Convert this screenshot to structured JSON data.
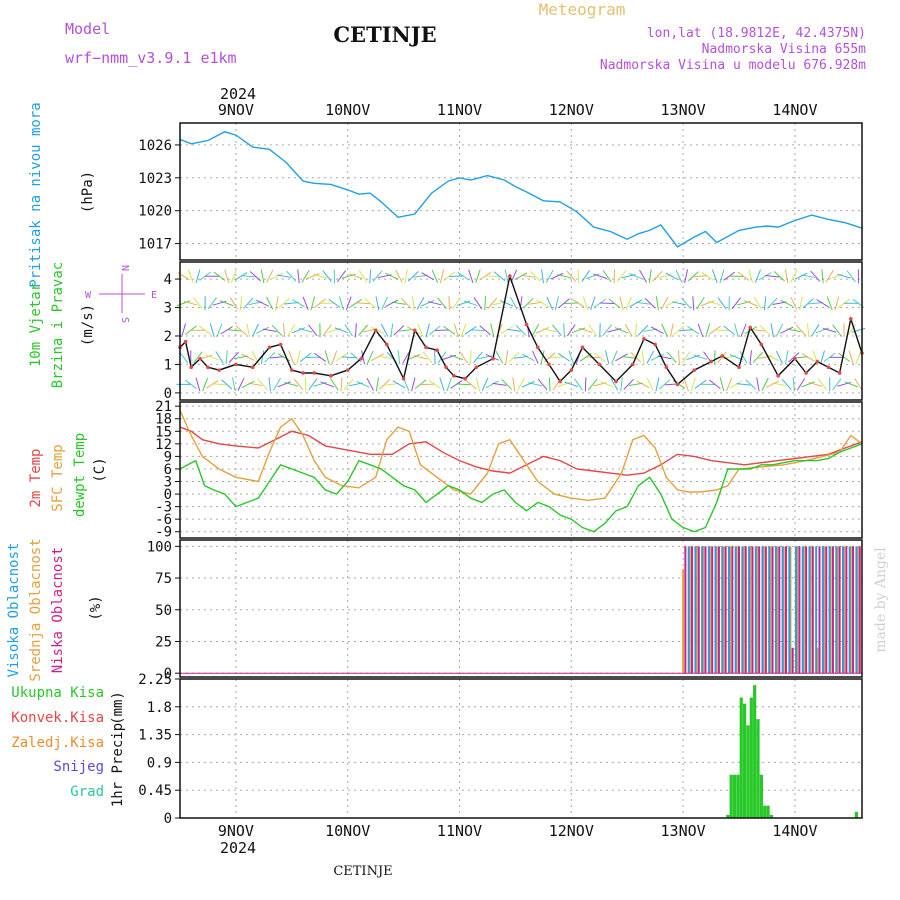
{
  "header": {
    "model_label": "Model",
    "model_name": "wrf−nmm_v3.9.1  e1km",
    "station": "CETINJE",
    "product": "Meteogram",
    "lonlat": "lon,lat (18.9812E, 42.4375N)",
    "elevation": "Nadmorska Visina 655m",
    "model_elevation": "Nadmorska Visina u modelu 676.928m",
    "footer_station": "CETINJE",
    "credit": "made by Angel",
    "year_top": "2024",
    "year_bottom": "2024"
  },
  "colors": {
    "pressure": "#1ea0e6",
    "temp2m": "#e64646",
    "sfctemp": "#e6a03c",
    "dewpt": "#28c828",
    "high_cloud": "#1ea0e6",
    "mid_cloud": "#e6a03c",
    "low_cloud": "#d21e8c",
    "precip_total": "#28c828",
    "purple": "#b450dc"
  },
  "chart_data": [
    {
      "type": "line",
      "panel": "pressure",
      "title": "",
      "ylabel": [
        "Pritisak na nivou mora",
        "(hPa)"
      ],
      "yticks": [
        1017,
        1020,
        1023,
        1026
      ],
      "ylim": [
        1015.5,
        1028
      ],
      "xlim": [
        0,
        6.1
      ],
      "xlabels": [
        "9NOV",
        "10NOV",
        "11NOV",
        "12NOV",
        "13NOV",
        "14NOV"
      ],
      "grid": true,
      "series": [
        {
          "key": "pressure",
          "x": [
            0,
            0.1,
            0.25,
            0.4,
            0.5,
            0.65,
            0.8,
            0.95,
            1.1,
            1.2,
            1.35,
            1.5,
            1.6,
            1.7,
            1.8,
            1.95,
            2.1,
            2.25,
            2.4,
            2.5,
            2.6,
            2.75,
            2.9,
            3.0,
            3.1,
            3.25,
            3.4,
            3.55,
            3.7,
            3.85,
            4.0,
            4.1,
            4.2,
            4.3,
            4.45,
            4.6,
            4.7,
            4.8,
            5.0,
            5.15,
            5.25,
            5.35,
            5.5,
            5.65,
            5.8,
            5.95,
            6.1
          ],
          "values": [
            1026.5,
            1026.1,
            1026.4,
            1027.2,
            1026.9,
            1025.8,
            1025.6,
            1024.4,
            1022.7,
            1022.5,
            1022.4,
            1021.9,
            1021.5,
            1021.6,
            1020.8,
            1019.4,
            1019.7,
            1021.6,
            1022.7,
            1023.0,
            1022.8,
            1023.2,
            1022.8,
            1022.2,
            1021.7,
            1020.9,
            1020.8,
            1019.9,
            1018.5,
            1018.1,
            1017.4,
            1017.9,
            1018.2,
            1018.7,
            1016.7,
            1017.6,
            1018.1,
            1017.1,
            1018.2,
            1018.5,
            1018.6,
            1018.5,
            1019.1,
            1019.6,
            1019.2,
            1018.9,
            1018.4
          ]
        }
      ]
    },
    {
      "type": "line",
      "panel": "wind",
      "title": "",
      "ylabel": [
        "10m Vjetar",
        "Brzina i Pravac",
        "(m/s)"
      ],
      "compass": {
        "n": "N",
        "s": "S",
        "w": "W",
        "e": "E"
      },
      "yticks": [
        0,
        1,
        2,
        3,
        4
      ],
      "ylim": [
        -0.25,
        4.6
      ],
      "xlim": [
        0,
        6.1
      ],
      "grid": true,
      "series": [
        {
          "key": "wind_speed",
          "x": [
            0,
            0.05,
            0.1,
            0.18,
            0.25,
            0.35,
            0.5,
            0.65,
            0.8,
            0.9,
            1.0,
            1.1,
            1.2,
            1.35,
            1.5,
            1.62,
            1.75,
            1.85,
            2.0,
            2.1,
            2.2,
            2.3,
            2.38,
            2.45,
            2.55,
            2.65,
            2.8,
            2.95,
            3.1,
            3.2,
            3.3,
            3.4,
            3.5,
            3.6,
            3.75,
            3.9,
            4.05,
            4.15,
            4.25,
            4.35,
            4.45,
            4.6,
            4.75,
            4.85,
            5.0,
            5.1,
            5.2,
            5.35,
            5.5,
            5.6,
            5.7,
            5.8,
            5.9,
            6.0,
            6.1
          ],
          "values": [
            1.6,
            1.8,
            0.9,
            1.2,
            0.9,
            0.8,
            1.0,
            0.9,
            1.6,
            1.7,
            0.8,
            0.7,
            0.7,
            0.6,
            0.8,
            1.2,
            2.2,
            1.7,
            0.5,
            2.2,
            1.6,
            1.5,
            0.9,
            0.6,
            0.5,
            0.9,
            1.2,
            4.1,
            2.4,
            1.6,
            1.0,
            0.4,
            0.8,
            1.6,
            1.0,
            0.4,
            1.0,
            1.9,
            1.7,
            0.9,
            0.3,
            0.8,
            1.1,
            1.3,
            0.9,
            2.3,
            1.7,
            0.6,
            1.2,
            0.7,
            1.1,
            0.9,
            0.7,
            2.6,
            1.4
          ]
        }
      ]
    },
    {
      "type": "line",
      "panel": "temperature",
      "title": "",
      "ylabel": [
        "2m Temp",
        "SFC Temp",
        "dewpt Temp",
        "(C)"
      ],
      "yticks": [
        -9,
        -6,
        -3,
        0,
        3,
        6,
        9,
        12,
        15,
        18,
        21
      ],
      "ylim": [
        -10.5,
        22
      ],
      "xlim": [
        0,
        6.1
      ],
      "grid": true,
      "series": [
        {
          "name": "2m Temp",
          "key": "temp2m",
          "x": [
            0,
            0.1,
            0.2,
            0.35,
            0.5,
            0.7,
            0.85,
            1.0,
            1.15,
            1.3,
            1.5,
            1.7,
            1.9,
            2.05,
            2.2,
            2.35,
            2.5,
            2.65,
            2.8,
            2.95,
            3.1,
            3.25,
            3.4,
            3.55,
            3.7,
            3.85,
            4.0,
            4.15,
            4.3,
            4.45,
            4.6,
            4.75,
            4.9,
            5.05,
            5.2,
            5.35,
            5.5,
            5.65,
            5.8,
            5.95,
            6.1
          ],
          "values": [
            16,
            15,
            13,
            12,
            11.5,
            11,
            13,
            15,
            14,
            11.5,
            10.5,
            9.5,
            9.5,
            12,
            12.5,
            10,
            8,
            6.5,
            5.5,
            5,
            7,
            9,
            8,
            6,
            5.5,
            5,
            4.5,
            5,
            7,
            9.5,
            9,
            8,
            7.5,
            7,
            7.5,
            8,
            8.5,
            9,
            9.5,
            11,
            12.5
          ]
        },
        {
          "name": "SFC Temp",
          "key": "sfctemp",
          "x": [
            0,
            0.1,
            0.2,
            0.35,
            0.5,
            0.7,
            0.8,
            0.9,
            1.0,
            1.1,
            1.2,
            1.3,
            1.45,
            1.6,
            1.75,
            1.85,
            1.95,
            2.05,
            2.15,
            2.3,
            2.45,
            2.6,
            2.75,
            2.85,
            2.95,
            3.05,
            3.2,
            3.35,
            3.5,
            3.65,
            3.8,
            3.95,
            4.05,
            4.15,
            4.25,
            4.35,
            4.45,
            4.55,
            4.65,
            4.8,
            4.9,
            5.0,
            5.2,
            5.4,
            5.6,
            5.75,
            5.9,
            6.0,
            6.1
          ],
          "values": [
            20,
            14,
            9,
            6,
            4,
            3,
            10,
            16,
            18,
            14,
            8,
            4,
            2,
            1.5,
            4,
            13,
            16,
            15,
            7,
            4,
            1,
            0,
            5,
            12,
            13,
            9,
            3,
            0,
            -1,
            -1.5,
            -1,
            5,
            13,
            14,
            11,
            4,
            1,
            0.5,
            0.5,
            1,
            2,
            6,
            6.5,
            7,
            8,
            9,
            10,
            14,
            12
          ]
        },
        {
          "name": "dewpt Temp",
          "key": "dewpt",
          "x": [
            0,
            0.07,
            0.14,
            0.22,
            0.3,
            0.4,
            0.5,
            0.6,
            0.7,
            0.8,
            0.9,
            1.0,
            1.1,
            1.2,
            1.3,
            1.4,
            1.5,
            1.6,
            1.7,
            1.8,
            1.9,
            2.0,
            2.1,
            2.2,
            2.3,
            2.4,
            2.5,
            2.6,
            2.7,
            2.8,
            2.9,
            3.0,
            3.1,
            3.2,
            3.3,
            3.4,
            3.5,
            3.6,
            3.7,
            3.8,
            3.9,
            4.0,
            4.1,
            4.2,
            4.3,
            4.4,
            4.5,
            4.6,
            4.7,
            4.8,
            4.9,
            5.0,
            5.1,
            5.2,
            5.3,
            5.4,
            5.5,
            5.6,
            5.7,
            5.8,
            5.9,
            6.0,
            6.1
          ],
          "values": [
            6,
            7,
            8,
            2,
            1,
            0,
            -3,
            -2,
            -1,
            3,
            7,
            6,
            5,
            4,
            1,
            0,
            3,
            8,
            7,
            6,
            4,
            2,
            1,
            -2,
            0,
            2,
            1,
            -1,
            -2,
            0,
            1,
            -2,
            -4,
            -2,
            -3,
            -5,
            -6,
            -8,
            -9,
            -7,
            -4,
            -3,
            2,
            4,
            0,
            -6,
            -8,
            -9,
            -8,
            -2,
            6,
            6,
            6,
            7,
            7,
            7.5,
            8,
            8,
            8,
            8.5,
            10,
            11,
            12
          ]
        }
      ]
    },
    {
      "type": "bar",
      "panel": "cloud",
      "title": "",
      "ylabel": [
        "Visoka Oblacnost",
        "Srednja Oblacnost",
        "Niska Oblacnost",
        "(%)"
      ],
      "yticks": [
        0,
        25,
        50,
        75,
        100
      ],
      "ylim": [
        -3,
        105
      ],
      "xlim": [
        0,
        6.1
      ],
      "grid": true,
      "note": "0% cloud until ~12-13 NOV; mostly 100% thereafter",
      "series": [
        {
          "name": "Niska Oblacnost",
          "key": "low_cloud",
          "x": [
            4.52,
            4.58,
            4.64,
            4.7,
            4.76,
            4.82,
            4.88,
            4.94,
            5.0,
            5.06,
            5.12,
            5.18,
            5.24,
            5.3,
            5.36,
            5.42,
            5.48,
            5.54,
            5.6,
            5.66,
            5.72,
            5.78,
            5.84,
            5.9,
            5.96,
            6.02,
            6.08
          ],
          "values": [
            100,
            100,
            100,
            100,
            100,
            100,
            100,
            100,
            100,
            100,
            100,
            100,
            100,
            100,
            100,
            100,
            20,
            100,
            100,
            100,
            100,
            100,
            100,
            100,
            100,
            100,
            100
          ]
        },
        {
          "name": "Srednja Oblacnost",
          "key": "mid_cloud",
          "x": [
            4.5,
            4.56,
            4.62,
            4.68,
            4.74,
            4.8,
            4.86,
            4.92,
            4.98,
            5.04,
            5.1,
            5.16,
            5.22,
            5.28,
            5.34,
            5.4,
            5.46,
            5.52,
            5.58,
            5.64,
            5.7,
            5.76,
            5.82,
            5.88,
            5.94,
            6.0,
            6.06
          ],
          "values": [
            82,
            100,
            100,
            100,
            100,
            100,
            100,
            100,
            100,
            100,
            100,
            100,
            100,
            100,
            100,
            100,
            100,
            100,
            100,
            100,
            20,
            100,
            100,
            100,
            100,
            100,
            100
          ]
        },
        {
          "name": "Visoka Oblacnost",
          "key": "high_cloud",
          "x": [
            4.55,
            4.61,
            4.67,
            4.73,
            4.79,
            4.85,
            4.91,
            4.97,
            5.03,
            5.09,
            5.15,
            5.21,
            5.27,
            5.33,
            5.39,
            5.45,
            5.51,
            5.57,
            5.63,
            5.69,
            5.75,
            5.81,
            5.87,
            5.93,
            5.99,
            6.05
          ],
          "values": [
            100,
            100,
            100,
            100,
            100,
            100,
            100,
            100,
            100,
            100,
            100,
            100,
            100,
            100,
            100,
            100,
            100,
            100,
            100,
            100,
            100,
            100,
            100,
            100,
            100,
            100
          ]
        }
      ]
    },
    {
      "type": "bar",
      "panel": "precip",
      "title": "",
      "ylabel": [
        "1hr Precip",
        "(mm)"
      ],
      "legend": [
        "Ukupna Kisa",
        "Konvek.Kisa",
        "Zaledj.Kisa",
        "Snijeg",
        "Grad"
      ],
      "yticks": [
        0,
        0.45,
        0.9,
        1.35,
        1.8,
        2.25
      ],
      "ylim": [
        0,
        2.25
      ],
      "xlim": [
        0,
        6.1
      ],
      "grid": true,
      "xlabels": [
        "9NOV",
        "10NOV",
        "11NOV",
        "12NOV",
        "13NOV",
        "14NOV"
      ],
      "series": [
        {
          "name": "Ukupna Kisa",
          "key": "precip_total",
          "x": [
            4.9,
            4.93,
            4.96,
            4.99,
            5.02,
            5.05,
            5.08,
            5.11,
            5.14,
            5.17,
            5.2,
            5.23,
            5.26,
            5.29,
            6.05
          ],
          "values": [
            0.05,
            0.7,
            0.7,
            0.7,
            1.95,
            1.85,
            1.5,
            1.95,
            2.15,
            1.6,
            0.7,
            0.2,
            0.2,
            0.05,
            0.1
          ]
        }
      ]
    }
  ]
}
